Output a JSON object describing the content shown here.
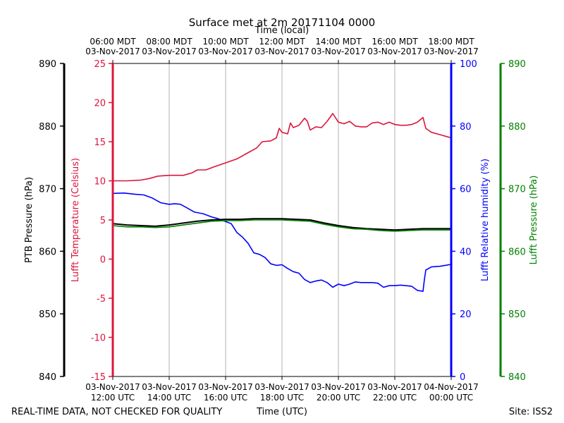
{
  "chart_data": {
    "type": "line",
    "title": "Surface met at 2m 20171104 0000",
    "top_axis_label": "Time (local)",
    "bottom_axis_label": "Time (UTC)",
    "footer_left": "REAL-TIME DATA, NOT CHECKED FOR QUALITY",
    "footer_right": "Site: ISS2",
    "x_range_hours_utc": [
      12,
      24
    ],
    "grid_x_hours": [
      14,
      16,
      18,
      20,
      22
    ],
    "x_ticks_bottom": [
      {
        "h": 12,
        "line1": "03-Nov-2017",
        "line2": "12:00 UTC"
      },
      {
        "h": 14,
        "line1": "03-Nov-2017",
        "line2": "14:00 UTC"
      },
      {
        "h": 16,
        "line1": "03-Nov-2017",
        "line2": "16:00 UTC"
      },
      {
        "h": 18,
        "line1": "03-Nov-2017",
        "line2": "18:00 UTC"
      },
      {
        "h": 20,
        "line1": "03-Nov-2017",
        "line2": "20:00 UTC"
      },
      {
        "h": 22,
        "line1": "03-Nov-2017",
        "line2": "22:00 UTC"
      },
      {
        "h": 24,
        "line1": "04-Nov-2017",
        "line2": "00:00 UTC"
      }
    ],
    "x_ticks_top": [
      {
        "h": 12,
        "line1": "06:00 MDT",
        "line2": "03-Nov-2017"
      },
      {
        "h": 14,
        "line1": "08:00 MDT",
        "line2": "03-Nov-2017"
      },
      {
        "h": 16,
        "line1": "10:00 MDT",
        "line2": "03-Nov-2017"
      },
      {
        "h": 18,
        "line1": "12:00 MDT",
        "line2": "03-Nov-2017"
      },
      {
        "h": 20,
        "line1": "14:00 MDT",
        "line2": "03-Nov-2017"
      },
      {
        "h": 22,
        "line1": "16:00 MDT",
        "line2": "03-Nov-2017"
      },
      {
        "h": 24,
        "line1": "18:00 MDT",
        "line2": "03-Nov-2017"
      }
    ],
    "axes": [
      {
        "id": "ptb",
        "label": "PTB Pressure (hPa)",
        "color": "#000000",
        "range": [
          840,
          890
        ],
        "ticks": [
          840,
          850,
          860,
          870,
          880,
          890
        ]
      },
      {
        "id": "temp",
        "label": "Lufft Temperature (Celsius)",
        "color": "#dc143c",
        "range": [
          -15,
          25
        ],
        "ticks": [
          -15,
          -10,
          -5,
          0,
          5,
          10,
          15,
          20,
          25
        ]
      },
      {
        "id": "rh",
        "label": "Lufft Relative humidity (%)",
        "color": "#0000ff",
        "range": [
          0,
          100
        ],
        "ticks": [
          0,
          20,
          40,
          60,
          80,
          100
        ]
      },
      {
        "id": "lp",
        "label": "Lufft Pressure (hPa)",
        "color": "#008000",
        "range": [
          840,
          890
        ],
        "ticks": [
          840,
          850,
          860,
          870,
          880,
          890
        ]
      }
    ],
    "series": [
      {
        "name": "Lufft Temperature",
        "axis": "temp",
        "color": "#dc143c",
        "points": [
          [
            12.0,
            10.0
          ],
          [
            12.5,
            10.0
          ],
          [
            13.0,
            10.1
          ],
          [
            13.3,
            10.3
          ],
          [
            13.6,
            10.6
          ],
          [
            14.0,
            10.7
          ],
          [
            14.5,
            10.7
          ],
          [
            14.8,
            11.0
          ],
          [
            15.0,
            11.4
          ],
          [
            15.3,
            11.4
          ],
          [
            15.6,
            11.8
          ],
          [
            16.0,
            12.3
          ],
          [
            16.4,
            12.8
          ],
          [
            16.8,
            13.6
          ],
          [
            17.1,
            14.2
          ],
          [
            17.3,
            15.0
          ],
          [
            17.6,
            15.1
          ],
          [
            17.8,
            15.5
          ],
          [
            17.9,
            16.7
          ],
          [
            18.0,
            16.2
          ],
          [
            18.2,
            16.0
          ],
          [
            18.3,
            17.4
          ],
          [
            18.4,
            16.8
          ],
          [
            18.6,
            17.1
          ],
          [
            18.8,
            18.0
          ],
          [
            18.9,
            17.6
          ],
          [
            19.0,
            16.5
          ],
          [
            19.2,
            16.9
          ],
          [
            19.4,
            16.8
          ],
          [
            19.6,
            17.6
          ],
          [
            19.8,
            18.6
          ],
          [
            20.0,
            17.5
          ],
          [
            20.2,
            17.3
          ],
          [
            20.4,
            17.6
          ],
          [
            20.6,
            17.0
          ],
          [
            20.8,
            16.9
          ],
          [
            21.0,
            16.9
          ],
          [
            21.2,
            17.4
          ],
          [
            21.4,
            17.5
          ],
          [
            21.6,
            17.2
          ],
          [
            21.8,
            17.5
          ],
          [
            22.0,
            17.2
          ],
          [
            22.2,
            17.1
          ],
          [
            22.4,
            17.1
          ],
          [
            22.6,
            17.2
          ],
          [
            22.8,
            17.5
          ],
          [
            23.0,
            18.1
          ],
          [
            23.1,
            16.7
          ],
          [
            23.3,
            16.2
          ],
          [
            23.6,
            15.9
          ],
          [
            24.0,
            15.5
          ]
        ]
      },
      {
        "name": "Lufft Relative humidity",
        "axis": "rh",
        "color": "#0000ff",
        "points": [
          [
            12.0,
            58.5
          ],
          [
            12.4,
            58.6
          ],
          [
            12.8,
            58.2
          ],
          [
            13.1,
            58.0
          ],
          [
            13.4,
            57.0
          ],
          [
            13.7,
            55.5
          ],
          [
            14.0,
            55.0
          ],
          [
            14.2,
            55.2
          ],
          [
            14.4,
            55.0
          ],
          [
            14.6,
            54.0
          ],
          [
            14.9,
            52.5
          ],
          [
            15.2,
            52.0
          ],
          [
            15.5,
            51.0
          ],
          [
            15.7,
            50.5
          ],
          [
            16.0,
            49.5
          ],
          [
            16.2,
            48.8
          ],
          [
            16.4,
            46.0
          ],
          [
            16.6,
            44.5
          ],
          [
            16.8,
            42.5
          ],
          [
            17.0,
            39.5
          ],
          [
            17.2,
            39.0
          ],
          [
            17.4,
            38.0
          ],
          [
            17.6,
            36.0
          ],
          [
            17.8,
            35.5
          ],
          [
            18.0,
            35.7
          ],
          [
            18.2,
            34.5
          ],
          [
            18.4,
            33.5
          ],
          [
            18.6,
            33.0
          ],
          [
            18.8,
            31.0
          ],
          [
            19.0,
            30.0
          ],
          [
            19.2,
            30.5
          ],
          [
            19.4,
            30.8
          ],
          [
            19.6,
            30.0
          ],
          [
            19.8,
            28.5
          ],
          [
            20.0,
            29.5
          ],
          [
            20.2,
            29.0
          ],
          [
            20.4,
            29.5
          ],
          [
            20.6,
            30.2
          ],
          [
            20.8,
            30.0
          ],
          [
            21.0,
            30.0
          ],
          [
            21.2,
            30.0
          ],
          [
            21.4,
            29.8
          ],
          [
            21.6,
            28.5
          ],
          [
            21.8,
            29.0
          ],
          [
            22.0,
            29.0
          ],
          [
            22.2,
            29.2
          ],
          [
            22.4,
            29.0
          ],
          [
            22.6,
            28.8
          ],
          [
            22.8,
            27.5
          ],
          [
            23.0,
            27.2
          ],
          [
            23.05,
            31.0
          ],
          [
            23.1,
            34.0
          ],
          [
            23.3,
            35.0
          ],
          [
            23.6,
            35.2
          ],
          [
            24.0,
            35.8
          ]
        ]
      },
      {
        "name": "PTB Pressure",
        "axis": "ptb",
        "color": "#000000",
        "points": [
          [
            12.0,
            864.4
          ],
          [
            12.5,
            864.2
          ],
          [
            13.0,
            864.1
          ],
          [
            13.5,
            864.0
          ],
          [
            14.0,
            864.2
          ],
          [
            14.5,
            864.5
          ],
          [
            15.0,
            864.8
          ],
          [
            15.5,
            865.0
          ],
          [
            16.0,
            865.1
          ],
          [
            16.5,
            865.1
          ],
          [
            17.0,
            865.2
          ],
          [
            17.5,
            865.2
          ],
          [
            18.0,
            865.2
          ],
          [
            18.5,
            865.1
          ],
          [
            19.0,
            865.0
          ],
          [
            19.5,
            864.5
          ],
          [
            20.0,
            864.1
          ],
          [
            20.5,
            863.8
          ],
          [
            21.0,
            863.6
          ],
          [
            21.5,
            863.5
          ],
          [
            22.0,
            863.4
          ],
          [
            22.5,
            863.5
          ],
          [
            23.0,
            863.6
          ],
          [
            23.5,
            863.6
          ],
          [
            24.0,
            863.6
          ]
        ]
      },
      {
        "name": "Lufft Pressure",
        "axis": "lp",
        "color": "#008000",
        "points": [
          [
            12.0,
            864.1
          ],
          [
            12.5,
            863.9
          ],
          [
            13.0,
            863.9
          ],
          [
            13.5,
            863.8
          ],
          [
            14.0,
            863.9
          ],
          [
            14.5,
            864.2
          ],
          [
            15.0,
            864.5
          ],
          [
            15.5,
            864.8
          ],
          [
            16.0,
            864.9
          ],
          [
            16.5,
            864.9
          ],
          [
            17.0,
            865.0
          ],
          [
            17.5,
            865.0
          ],
          [
            18.0,
            865.0
          ],
          [
            18.5,
            864.9
          ],
          [
            19.0,
            864.8
          ],
          [
            19.5,
            864.3
          ],
          [
            20.0,
            863.9
          ],
          [
            20.5,
            863.6
          ],
          [
            21.0,
            863.5
          ],
          [
            21.5,
            863.3
          ],
          [
            22.0,
            863.2
          ],
          [
            22.5,
            863.3
          ],
          [
            23.0,
            863.4
          ],
          [
            23.5,
            863.4
          ],
          [
            24.0,
            863.4
          ]
        ]
      }
    ]
  }
}
